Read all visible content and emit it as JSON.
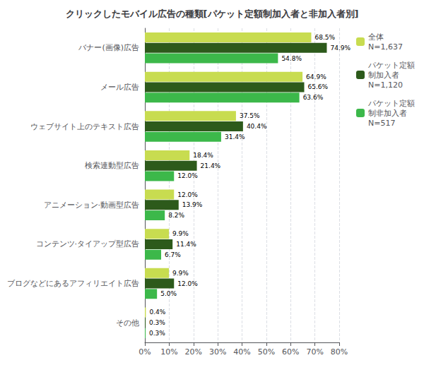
{
  "chart_data": {
    "type": "bar",
    "orientation": "horizontal",
    "title": "クリックしたモバイル広告の種類[パケット定額制加入者と非加入者別]",
    "categories": [
      "バナー(画像)広告",
      "メール広告",
      "ウェブサイト上のテキスト広告",
      "検索連動型広告",
      "アニメーション·動画型広告",
      "コンテンツ·タイアップ型広告",
      "ブログなどにあるアフィリエイト広告",
      "その他"
    ],
    "series": [
      {
        "name": "全体\nN=1,637",
        "color": "#c8dc50",
        "values": [
          68.5,
          64.9,
          37.5,
          18.4,
          12.0,
          9.9,
          9.9,
          0.4
        ],
        "value_labels": [
          "68.5%",
          "64.9%",
          "37.5%",
          "18.4%",
          "12.0%",
          "9.9%",
          "9.9%",
          "0.4%"
        ]
      },
      {
        "name": "パケット定額\n制加入者\nN=1,120",
        "color": "#2d5a1b",
        "values": [
          74.9,
          65.6,
          40.4,
          21.4,
          13.9,
          11.4,
          12.0,
          0.3
        ],
        "value_labels": [
          "74.9%",
          "65.6%",
          "40.4%",
          "21.4%",
          "13.9%",
          "11.4%",
          "12.0%",
          "0.3%"
        ]
      },
      {
        "name": "パケット定額\n制非加入者\nN=517",
        "color": "#3cb84a",
        "values": [
          54.8,
          63.6,
          31.4,
          12.0,
          8.2,
          6.7,
          5.0,
          0.3
        ],
        "value_labels": [
          "54.8%",
          "63.6%",
          "31.4%",
          "12.0%",
          "8.2%",
          "6.7%",
          "5.0%",
          "0.3%"
        ]
      }
    ],
    "xlim": [
      0,
      80
    ],
    "xticks": [
      {
        "value": 0,
        "label": "0%"
      },
      {
        "value": 10,
        "label": "10%"
      },
      {
        "value": 20,
        "label": "20%"
      },
      {
        "value": 30,
        "label": "30%"
      },
      {
        "value": 40,
        "label": "40%"
      },
      {
        "value": 50,
        "label": "50%"
      },
      {
        "value": 60,
        "label": "60%"
      },
      {
        "value": 70,
        "label": "70%"
      },
      {
        "value": 80,
        "label": "80%"
      }
    ],
    "grid": true,
    "legend": "upper right",
    "data_labels": true
  }
}
